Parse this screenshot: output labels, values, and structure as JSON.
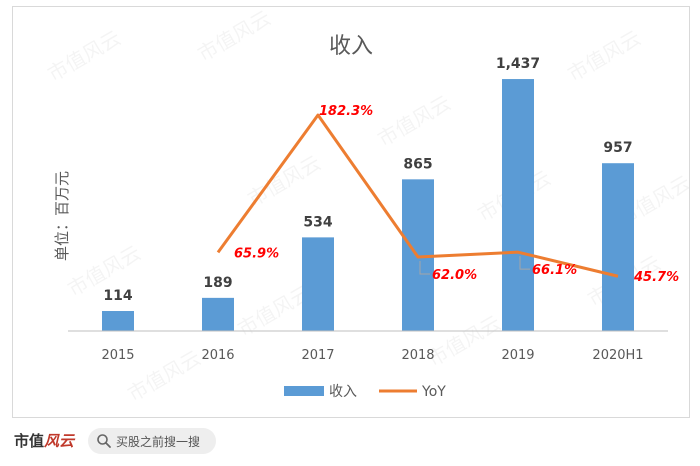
{
  "chart_data": {
    "type": "bar",
    "title": "收入",
    "ylabel": "单位：百万元",
    "categories": [
      "2015",
      "2016",
      "2017",
      "2018",
      "2019",
      "2020H1"
    ],
    "series": [
      {
        "name": "收入",
        "kind": "bar",
        "values": [
          114,
          189,
          534,
          865,
          1437,
          957
        ],
        "labels": [
          "114",
          "189",
          "534",
          "865",
          "1,437",
          "957"
        ],
        "color": "#5b9bd5"
      },
      {
        "name": "YoY",
        "kind": "line",
        "values": [
          null,
          65.9,
          182.3,
          62.0,
          66.1,
          45.7
        ],
        "labels": [
          "",
          "65.9%",
          "182.3%",
          "62.0%",
          "66.1%",
          "45.7%"
        ],
        "color": "#ed7d31",
        "label_color": "#ff0000"
      }
    ],
    "ylim": [
      0,
      1500
    ],
    "grid": false,
    "legend": "bottom"
  },
  "watermark": "市值风云",
  "footer": {
    "brand": "市值",
    "brand_tail": "风云",
    "search_text": "买股之前搜一搜"
  }
}
